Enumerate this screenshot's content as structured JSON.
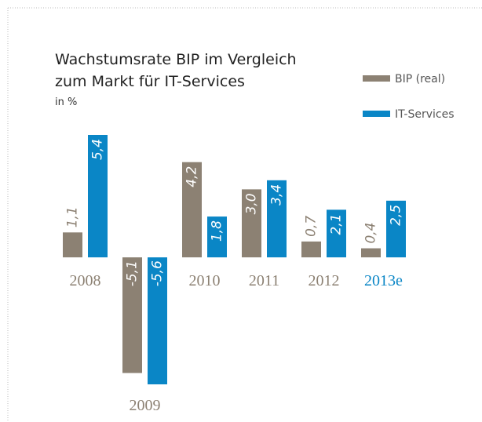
{
  "chart_data": {
    "type": "bar",
    "title": "Wachstumsrate BIP im Vergleich",
    "title_line2": "zum Markt für IT-Services",
    "subtitle": "in %",
    "categories": [
      "2008",
      "2009",
      "2010",
      "2011",
      "2012",
      "2013e"
    ],
    "category_label_colors": [
      "#8c8173",
      "#8c8173",
      "#8c8173",
      "#8c8173",
      "#8c8173",
      "#0a86c6"
    ],
    "series": [
      {
        "name": "BIP (real)",
        "color": "#8c8173",
        "values": [
          1.1,
          -5.1,
          4.2,
          3.0,
          0.7,
          0.4
        ],
        "value_labels": [
          "1,1",
          "-5,1",
          "4,2",
          "3,0",
          "0,7",
          "0,4"
        ]
      },
      {
        "name": "IT-Services",
        "color": "#0a86c6",
        "values": [
          5.4,
          -5.6,
          1.8,
          3.4,
          2.1,
          2.5
        ],
        "value_labels": [
          "5,4",
          "-5,6",
          "1,8",
          "3,4",
          "2,1",
          "2,5"
        ]
      }
    ],
    "ylim": [
      -5.6,
      5.4
    ]
  }
}
